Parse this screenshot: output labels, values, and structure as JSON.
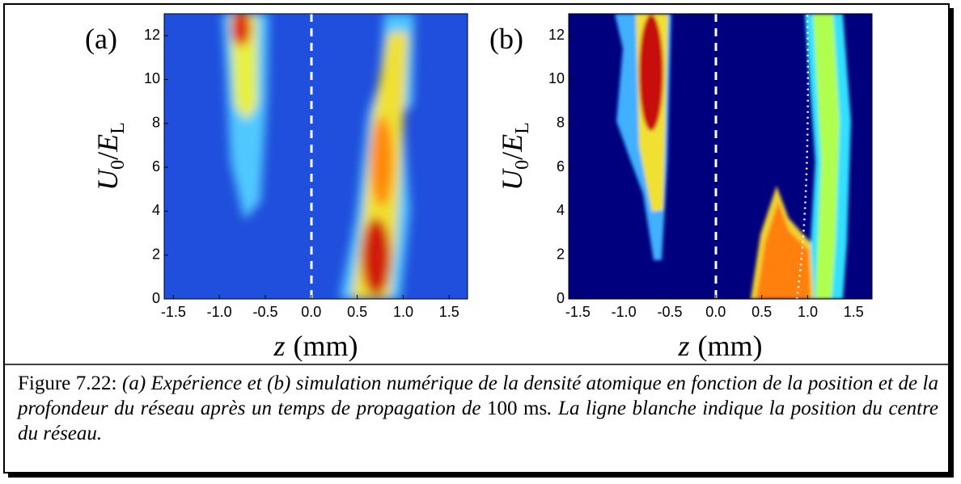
{
  "chart_data": [
    {
      "type": "heatmap",
      "panel_label": "(a)",
      "xlabel": [
        "z",
        "(mm)"
      ],
      "ylabel": [
        "U",
        "0",
        "/",
        "E",
        "L"
      ],
      "xlim": [
        -1.6,
        1.7
      ],
      "ylim": [
        0,
        13
      ],
      "xticks": [
        -1.5,
        {
          "value": -1,
          "label": "-1.0"
        },
        -0.5,
        {
          "value": 0,
          "label": "0.0"
        },
        0.5,
        {
          "value": 1,
          "label": "1.0"
        },
        1.5
      ],
      "yticks": [
        0,
        2,
        4,
        6,
        8,
        10,
        12
      ]
    },
    {
      "type": "heatmap",
      "panel_label": "(b)",
      "xlabel": [
        "z",
        "(mm)"
      ],
      "ylabel": [
        "U",
        "0",
        "/",
        "E",
        "L"
      ],
      "xlim": [
        -1.6,
        1.7
      ],
      "ylim": [
        0,
        13
      ],
      "xticks": [
        -1.5,
        {
          "value": -1,
          "label": "-1.0"
        },
        -0.5,
        {
          "value": 0,
          "label": "0.0"
        },
        0.5,
        {
          "value": 1,
          "label": "1.0"
        },
        1.5
      ],
      "yticks": [
        0,
        2,
        4,
        6,
        8,
        10,
        12
      ]
    }
  ],
  "caption": {
    "label": "Figure 7.22:",
    "text": [
      "(a) Expérience et (b) simulation numérique de la densité atomique en fonction de la position et de la profondeur du réseau après un temps de propagation de",
      "100 ms",
      ". La ligne blanche indique la position du centre du réseau."
    ]
  }
}
